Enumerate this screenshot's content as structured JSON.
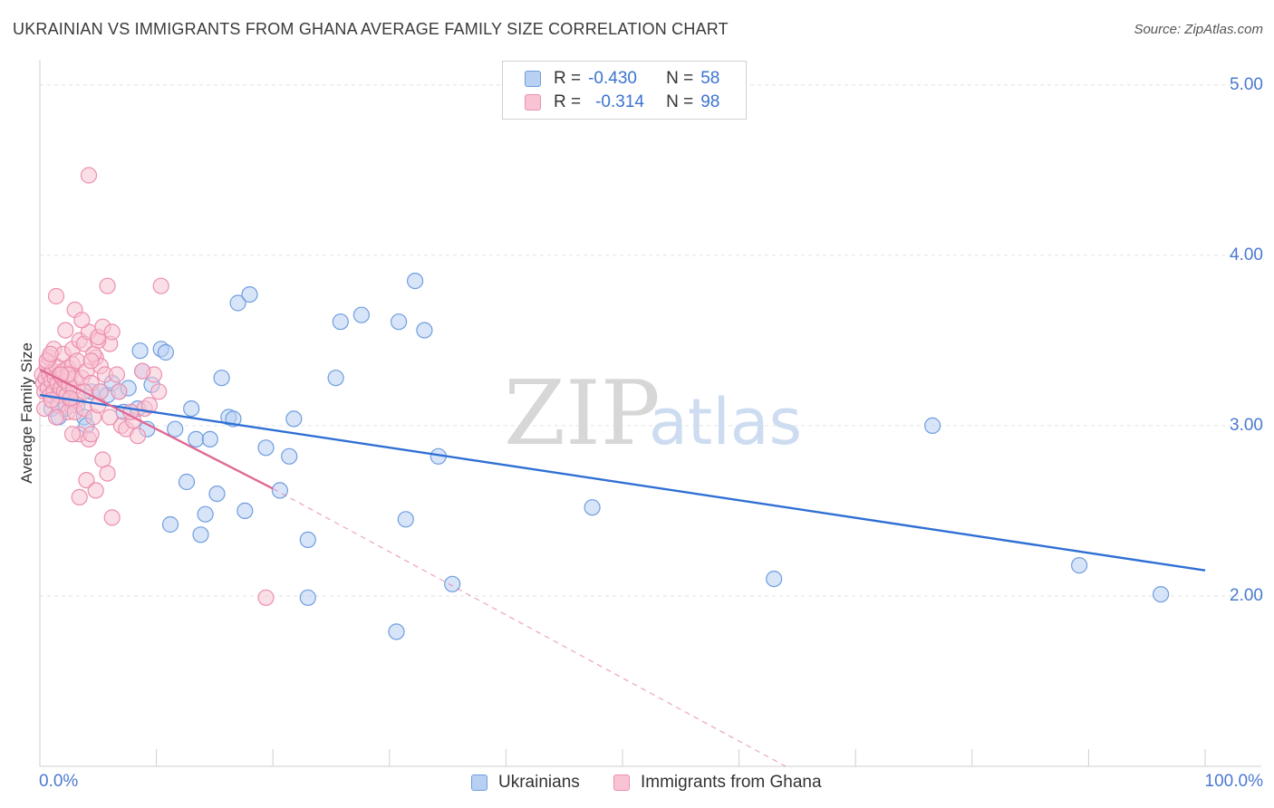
{
  "chart_data": {
    "type": "scatter",
    "title": "UKRAINIAN VS IMMIGRANTS FROM GHANA AVERAGE FAMILY SIZE CORRELATION CHART",
    "source": "Source: ZipAtlas.com",
    "xlabel": "",
    "ylabel": "Average Family Size",
    "xlim": [
      0,
      100
    ],
    "ylim": [
      1.0,
      5.1
    ],
    "x_tick_labels": [
      "0.0%",
      "100.0%"
    ],
    "y_ticks": [
      2.0,
      3.0,
      4.0,
      5.0
    ],
    "y_tick_labels": [
      "2.00",
      "3.00",
      "4.00",
      "5.00"
    ],
    "grid": true,
    "legend": {
      "position": "top-center",
      "rows": [
        {
          "r_label": "R =",
          "r_value": "-0.430",
          "n_label": "N =",
          "n_value": "58"
        },
        {
          "r_label": "R =",
          "r_value": "-0.314",
          "n_label": "N =",
          "n_value": "98"
        }
      ]
    },
    "watermark": {
      "zip": "ZIP",
      "atlas": "atlas"
    },
    "series": [
      {
        "name": "Ukrainians",
        "color": "#6f9de0",
        "fill": "#b8d0f2",
        "trend": {
          "x0": 0,
          "y0": 3.18,
          "x1": 100,
          "y1": 2.15,
          "color": "#2f6fd4"
        },
        "points": [
          [
            1.0,
            3.1
          ],
          [
            1.6,
            3.05
          ],
          [
            2.2,
            3.1
          ],
          [
            2.6,
            3.15
          ],
          [
            3.2,
            3.12
          ],
          [
            3.8,
            3.05
          ],
          [
            4.4,
            3.2
          ],
          [
            5.2,
            3.2
          ],
          [
            5.8,
            3.18
          ],
          [
            6.2,
            3.25
          ],
          [
            6.8,
            3.2
          ],
          [
            7.2,
            3.08
          ],
          [
            7.6,
            3.22
          ],
          [
            8.4,
            3.1
          ],
          [
            8.8,
            3.32
          ],
          [
            8.6,
            3.44
          ],
          [
            9.2,
            2.98
          ],
          [
            9.6,
            3.24
          ],
          [
            10.4,
            3.45
          ],
          [
            10.8,
            3.43
          ],
          [
            11.2,
            2.42
          ],
          [
            11.6,
            2.98
          ],
          [
            12.6,
            2.67
          ],
          [
            13.0,
            3.1
          ],
          [
            13.4,
            2.92
          ],
          [
            13.8,
            2.36
          ],
          [
            14.2,
            2.48
          ],
          [
            14.6,
            2.92
          ],
          [
            15.2,
            2.6
          ],
          [
            15.6,
            3.28
          ],
          [
            16.2,
            3.05
          ],
          [
            16.6,
            3.04
          ],
          [
            17.0,
            3.72
          ],
          [
            17.6,
            2.5
          ],
          [
            18.0,
            3.77
          ],
          [
            19.4,
            2.87
          ],
          [
            20.6,
            2.62
          ],
          [
            21.4,
            2.82
          ],
          [
            21.8,
            3.04
          ],
          [
            23.0,
            2.33
          ],
          [
            23.0,
            1.99
          ],
          [
            25.4,
            3.28
          ],
          [
            25.8,
            3.61
          ],
          [
            27.6,
            3.65
          ],
          [
            30.6,
            1.79
          ],
          [
            30.8,
            3.61
          ],
          [
            31.4,
            2.45
          ],
          [
            32.2,
            3.85
          ],
          [
            33.0,
            3.56
          ],
          [
            34.2,
            2.82
          ],
          [
            35.4,
            2.07
          ],
          [
            47.4,
            2.52
          ],
          [
            63.0,
            2.1
          ],
          [
            76.6,
            3.0
          ],
          [
            89.2,
            2.18
          ],
          [
            96.2,
            2.01
          ],
          [
            4.0,
            3.0
          ],
          [
            1.8,
            3.2
          ]
        ]
      },
      {
        "name": "Immigrants from Ghana",
        "color": "#ec8fae",
        "fill": "#f8c4d4",
        "trend": {
          "x0": 0,
          "y0": 3.33,
          "x1": 20,
          "y1": 2.63,
          "color": "#e06994"
        },
        "trend_extension": {
          "x0": 20,
          "y0": 2.63,
          "x1": 64,
          "y1": 1.0
        },
        "points": [
          [
            0.2,
            3.3
          ],
          [
            0.3,
            3.25
          ],
          [
            0.4,
            3.2
          ],
          [
            0.5,
            3.28
          ],
          [
            0.6,
            3.35
          ],
          [
            0.7,
            3.22
          ],
          [
            0.8,
            3.3
          ],
          [
            0.9,
            3.18
          ],
          [
            1.0,
            3.26
          ],
          [
            1.1,
            3.32
          ],
          [
            1.2,
            3.2
          ],
          [
            1.3,
            3.28
          ],
          [
            1.4,
            3.35
          ],
          [
            1.5,
            3.25
          ],
          [
            1.6,
            3.18
          ],
          [
            1.7,
            3.3
          ],
          [
            1.8,
            3.22
          ],
          [
            1.9,
            3.28
          ],
          [
            2.0,
            3.32
          ],
          [
            2.1,
            3.2
          ],
          [
            2.2,
            3.26
          ],
          [
            2.3,
            3.18
          ],
          [
            2.4,
            3.34
          ],
          [
            2.5,
            3.24
          ],
          [
            2.6,
            3.3
          ],
          [
            2.7,
            3.12
          ],
          [
            2.8,
            3.36
          ],
          [
            2.9,
            3.22
          ],
          [
            3.0,
            3.28
          ],
          [
            3.1,
            3.15
          ],
          [
            0.4,
            3.1
          ],
          [
            0.8,
            3.4
          ],
          [
            1.2,
            3.45
          ],
          [
            1.6,
            3.12
          ],
          [
            2.0,
            3.42
          ],
          [
            2.4,
            3.08
          ],
          [
            2.8,
            3.45
          ],
          [
            3.2,
            3.38
          ],
          [
            3.6,
            3.28
          ],
          [
            4.0,
            3.32
          ],
          [
            4.4,
            3.25
          ],
          [
            4.8,
            3.4
          ],
          [
            5.2,
            3.35
          ],
          [
            5.6,
            3.3
          ],
          [
            6.0,
            3.48
          ],
          [
            3.4,
            3.5
          ],
          [
            3.8,
            3.48
          ],
          [
            4.2,
            3.55
          ],
          [
            4.6,
            3.42
          ],
          [
            5.0,
            3.5
          ],
          [
            1.4,
            3.76
          ],
          [
            2.2,
            3.56
          ],
          [
            3.0,
            3.68
          ],
          [
            3.6,
            3.62
          ],
          [
            4.4,
            3.38
          ],
          [
            5.0,
            3.52
          ],
          [
            5.4,
            3.58
          ],
          [
            5.8,
            3.82
          ],
          [
            6.2,
            3.55
          ],
          [
            10.4,
            3.82
          ],
          [
            2.4,
            3.3
          ],
          [
            3.0,
            3.08
          ],
          [
            3.4,
            2.95
          ],
          [
            3.8,
            3.1
          ],
          [
            4.2,
            2.92
          ],
          [
            4.6,
            3.05
          ],
          [
            5.0,
            3.12
          ],
          [
            5.4,
            2.8
          ],
          [
            5.8,
            2.72
          ],
          [
            6.2,
            2.46
          ],
          [
            4.4,
            2.95
          ],
          [
            4.0,
            2.68
          ],
          [
            4.8,
            2.62
          ],
          [
            3.4,
            2.58
          ],
          [
            1.8,
            3.3
          ],
          [
            2.6,
            3.16
          ],
          [
            6.6,
            3.3
          ],
          [
            7.0,
            3.0
          ],
          [
            7.4,
            2.98
          ],
          [
            8.0,
            3.03
          ],
          [
            8.4,
            2.94
          ],
          [
            9.0,
            3.1
          ],
          [
            9.4,
            3.12
          ],
          [
            9.8,
            3.3
          ],
          [
            10.2,
            3.2
          ],
          [
            6.8,
            3.2
          ],
          [
            7.8,
            3.08
          ],
          [
            8.8,
            3.32
          ],
          [
            4.2,
            4.47
          ],
          [
            19.4,
            1.99
          ],
          [
            0.6,
            3.38
          ],
          [
            1.0,
            3.15
          ],
          [
            1.4,
            3.05
          ],
          [
            2.8,
            2.95
          ],
          [
            5.2,
            3.2
          ],
          [
            6.0,
            3.05
          ],
          [
            0.9,
            3.42
          ],
          [
            3.8,
            3.2
          ]
        ]
      }
    ]
  },
  "bottom_legend": {
    "items": [
      {
        "label": "Ukrainians"
      },
      {
        "label": "Immigrants from Ghana"
      }
    ]
  }
}
